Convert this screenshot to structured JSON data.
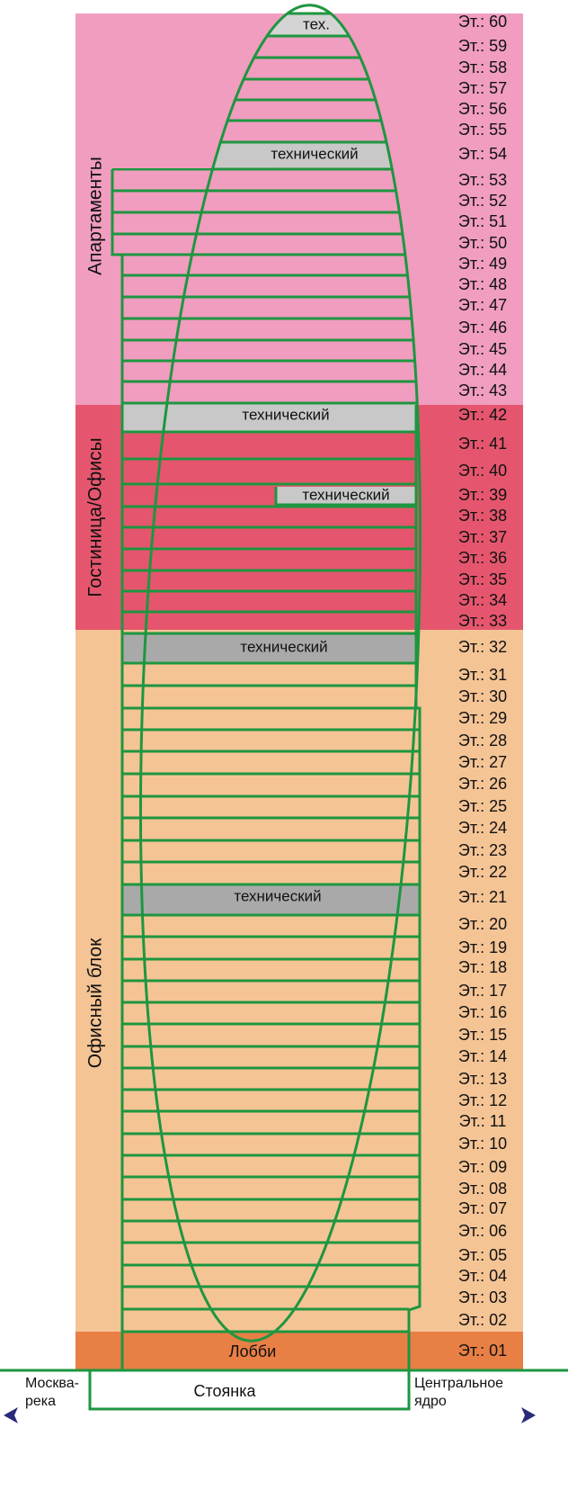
{
  "zones": [
    "Апартаменты",
    "Гостиница/Офисы",
    "Офисный блок"
  ],
  "floors": [
    "Эт.: 60",
    "Эт.: 59",
    "Эт.: 58",
    "Эт.: 57",
    "Эт.: 56",
    "Эт.: 55",
    "Эт.: 54",
    "Эт.: 53",
    "Эт.: 52",
    "Эт.: 51",
    "Эт.: 50",
    "Эт.: 49",
    "Эт.: 48",
    "Эт.: 47",
    "Эт.: 46",
    "Эт.: 45",
    "Эт.: 44",
    "Эт.: 43",
    "Эт.: 42",
    "Эт.: 41",
    "Эт.: 40",
    "Эт.: 39",
    "Эт.: 38",
    "Эт.: 37",
    "Эт.: 36",
    "Эт.: 35",
    "Эт.: 34",
    "Эт.: 33",
    "Эт.: 32",
    "Эт.: 31",
    "Эт.: 30",
    "Эт.: 29",
    "Эт.: 28",
    "Эт.: 27",
    "Эт.: 26",
    "Эт.: 25",
    "Эт.: 24",
    "Эт.: 23",
    "Эт.: 22",
    "Эт.: 21",
    "Эт.: 20",
    "Эт.: 19",
    "Эт.: 18",
    "Эт.: 17",
    "Эт.: 16",
    "Эт.: 15",
    "Эт.: 14",
    "Эт.: 13",
    "Эт.: 12",
    "Эт.: 11",
    "Эт.: 10",
    "Эт.: 09",
    "Эт.: 08",
    "Эт.: 07",
    "Эт.: 06",
    "Эт.: 05",
    "Эт.: 04",
    "Эт.: 03",
    "Эт.: 02",
    "Эт.: 01"
  ],
  "technical": [
    "тех.",
    "технический",
    "технический",
    "технический",
    "технический",
    "технический"
  ],
  "lobby": "Лобби",
  "parking": "Стоянка",
  "left_label": [
    "Москва-",
    "река"
  ],
  "right_label": [
    "Центральное",
    "ядро"
  ]
}
